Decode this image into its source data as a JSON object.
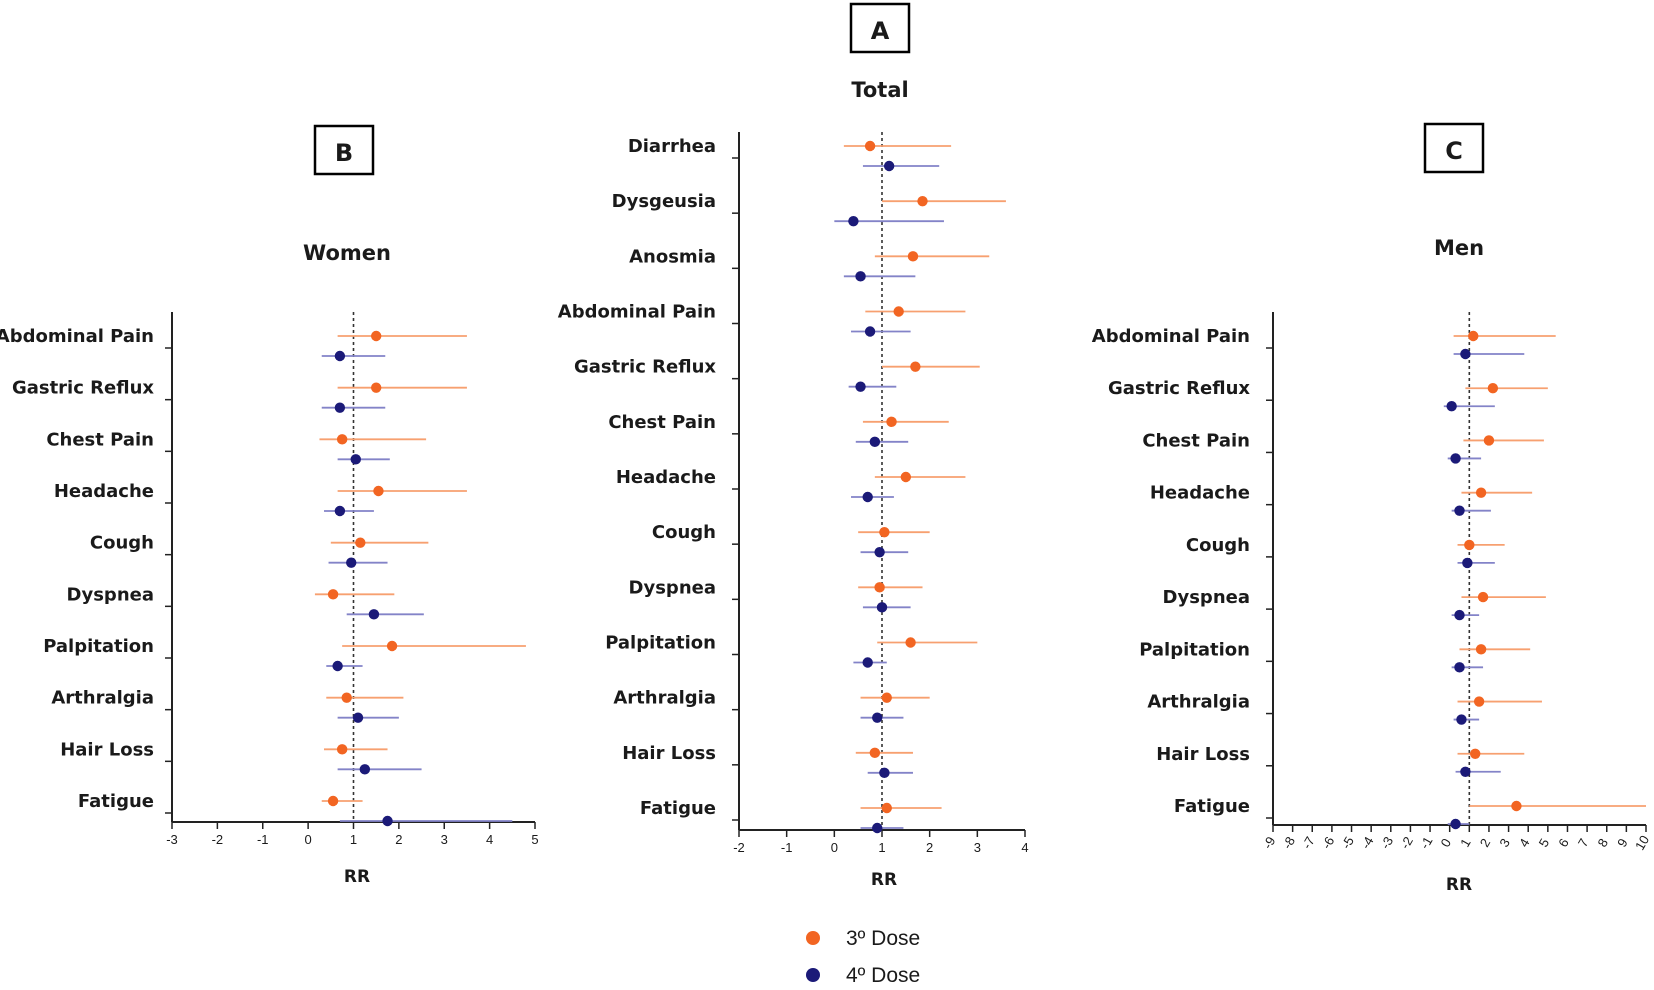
{
  "colors": {
    "dose3": "#f26522",
    "dose4": "#1b1a78",
    "ci3": "#f7a070",
    "ci4": "#8383c8"
  },
  "legend": {
    "dose3_label": "3º Dose",
    "dose4_label": "4º Dose"
  },
  "chart_data": [
    {
      "type": "forest",
      "panel": "A",
      "title": "Total",
      "xlabel": "RR",
      "xlim": [
        -2,
        4
      ],
      "xticks": [
        "-2",
        "-1",
        "0",
        "1",
        "2",
        "3",
        "4"
      ],
      "reference_line": 1,
      "categories": [
        "Diarrhea",
        "Dysgeusia",
        "Anosmia",
        "Abdominal Pain",
        "Gastric Reflux",
        "Chest Pain",
        "Headache",
        "Cough",
        "Dyspnea",
        "Palpitation",
        "Arthralgia",
        "Hair Loss",
        "Fatigue"
      ],
      "series": [
        {
          "name": "3º Dose",
          "rr": [
            0.75,
            1.85,
            1.65,
            1.35,
            1.7,
            1.2,
            1.5,
            1.05,
            0.95,
            1.6,
            1.1,
            0.85,
            1.1
          ],
          "lo": [
            0.2,
            1.0,
            0.85,
            0.65,
            1.0,
            0.6,
            0.85,
            0.5,
            0.5,
            0.9,
            0.55,
            0.45,
            0.55
          ],
          "hi": [
            2.45,
            3.6,
            3.25,
            2.75,
            3.05,
            2.4,
            2.75,
            2.0,
            1.85,
            3.0,
            2.0,
            1.65,
            2.25
          ]
        },
        {
          "name": "4º Dose",
          "rr": [
            1.15,
            0.4,
            0.55,
            0.75,
            0.55,
            0.85,
            0.7,
            0.95,
            1.0,
            0.7,
            0.9,
            1.05,
            0.9
          ],
          "lo": [
            0.6,
            0.0,
            0.2,
            0.35,
            0.3,
            0.45,
            0.35,
            0.55,
            0.6,
            0.4,
            0.55,
            0.7,
            0.55
          ],
          "hi": [
            2.2,
            2.3,
            1.7,
            1.6,
            1.3,
            1.55,
            1.25,
            1.55,
            1.6,
            1.1,
            1.45,
            1.65,
            1.45
          ]
        }
      ]
    },
    {
      "type": "forest",
      "panel": "B",
      "title": "Women",
      "xlabel": "RR",
      "xlim": [
        -3,
        5
      ],
      "xticks": [
        "-3",
        "-2",
        "-1",
        "0",
        "1",
        "2",
        "3",
        "4",
        "5"
      ],
      "reference_line": 1,
      "categories": [
        "Abdominal Pain",
        "Gastric Reflux",
        "Chest Pain",
        "Headache",
        "Cough",
        "Dyspnea",
        "Palpitation",
        "Arthralgia",
        "Hair Loss",
        "Fatigue"
      ],
      "series": [
        {
          "name": "3º Dose",
          "rr": [
            1.5,
            1.5,
            0.75,
            1.55,
            1.15,
            0.55,
            1.85,
            0.85,
            0.75,
            0.55
          ],
          "lo": [
            0.65,
            0.65,
            0.25,
            0.65,
            0.5,
            0.15,
            0.75,
            0.4,
            0.35,
            0.3
          ],
          "hi": [
            3.5,
            3.5,
            2.6,
            3.5,
            2.65,
            1.9,
            4.8,
            2.1,
            1.75,
            1.2
          ]
        },
        {
          "name": "4º Dose",
          "rr": [
            0.7,
            0.7,
            1.05,
            0.7,
            0.95,
            1.45,
            0.65,
            1.1,
            1.25,
            1.75
          ],
          "lo": [
            0.3,
            0.3,
            0.65,
            0.35,
            0.45,
            0.85,
            0.4,
            0.65,
            0.65,
            0.7
          ],
          "hi": [
            1.7,
            1.7,
            1.8,
            1.45,
            1.75,
            2.55,
            1.2,
            2.0,
            2.5,
            4.5
          ]
        }
      ]
    },
    {
      "type": "forest",
      "panel": "C",
      "title": "Men",
      "xlabel": "RR",
      "xlim": [
        -9,
        10
      ],
      "xticks": [
        "-9",
        "-8",
        "-7",
        "-6",
        "-5",
        "-4",
        "-3",
        "-2",
        "-1",
        "0",
        "1",
        "2",
        "3",
        "4",
        "5",
        "6",
        "7",
        "8",
        "9",
        "10"
      ],
      "reference_line": 1,
      "categories": [
        "Abdominal Pain",
        "Gastric Reflux",
        "Chest Pain",
        "Headache",
        "Cough",
        "Dyspnea",
        "Palpitation",
        "Arthralgia",
        "Hair Loss",
        "Fatigue"
      ],
      "series": [
        {
          "name": "3º Dose",
          "rr": [
            1.2,
            2.2,
            2.0,
            1.6,
            1.0,
            1.7,
            1.6,
            1.5,
            1.3,
            3.4
          ],
          "lo": [
            0.2,
            0.8,
            0.7,
            0.6,
            0.4,
            0.6,
            0.5,
            0.4,
            0.4,
            1.0
          ],
          "hi": [
            5.4,
            5.0,
            4.8,
            4.2,
            2.8,
            4.9,
            4.1,
            4.7,
            3.8,
            10.0
          ]
        },
        {
          "name": "4º Dose",
          "rr": [
            0.8,
            0.1,
            0.3,
            0.5,
            0.9,
            0.5,
            0.5,
            0.6,
            0.8,
            0.3
          ],
          "lo": [
            0.2,
            -0.3,
            -0.1,
            0.1,
            0.4,
            0.1,
            0.1,
            0.2,
            0.3,
            -0.1
          ],
          "hi": [
            3.8,
            2.3,
            1.6,
            2.1,
            2.3,
            1.5,
            1.7,
            1.5,
            2.6,
            1.0
          ]
        }
      ]
    }
  ]
}
